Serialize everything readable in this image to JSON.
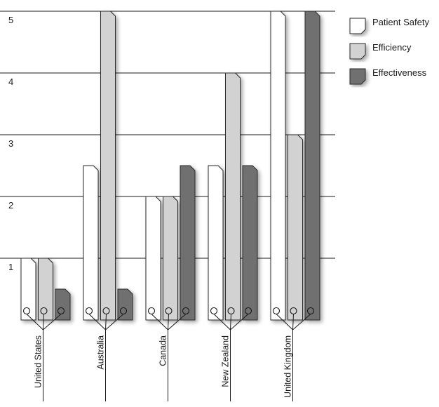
{
  "chart_data": {
    "type": "bar",
    "title": "",
    "xlabel": "",
    "ylabel": "",
    "ylim": [
      0,
      5
    ],
    "yticks": [
      1,
      2,
      3,
      4,
      5
    ],
    "grid": true,
    "legend_position": "top-right",
    "categories": [
      "United States",
      "Australia",
      "Canada",
      "New Zealand",
      "United Kingdom"
    ],
    "series": [
      {
        "name": "Patient Safety",
        "color": "#ffffff",
        "values": [
          1,
          2.5,
          2,
          2.5,
          5
        ]
      },
      {
        "name": "Efficiency",
        "color": "#d2d2d2",
        "values": [
          1,
          5,
          2,
          4,
          3
        ]
      },
      {
        "name": "Effectiveness",
        "color": "#707070",
        "values": [
          0.5,
          0.5,
          2.5,
          2.5,
          5
        ]
      }
    ]
  }
}
